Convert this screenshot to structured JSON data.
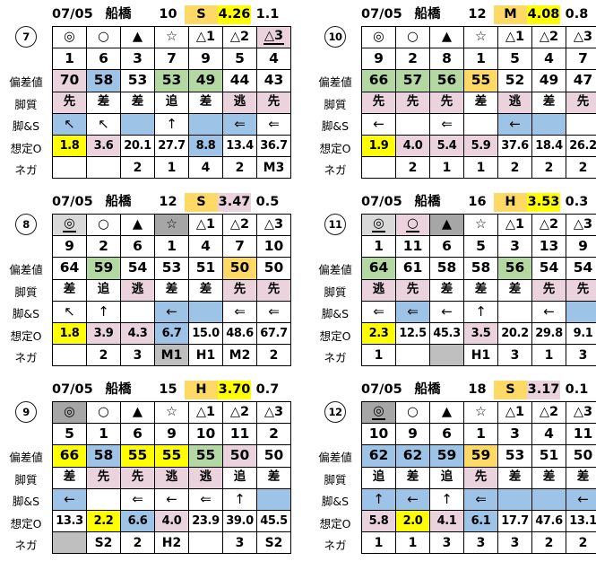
{
  "page": {
    "background": "#FFFFFF"
  },
  "colors": {
    "pink": "#EAD3DD",
    "blue": "#9DC3E6",
    "green": "#B3D8A2",
    "orange": "#FFD966",
    "yellow": "#FFFF00",
    "lgray": "#D9D9D9",
    "dgray": "#A6A6A6",
    "mgray": "#BFBFBF",
    "border": "#000000"
  },
  "row_labels": [
    {
      "key": "symbols",
      "label": ""
    },
    {
      "key": "numbers",
      "label": ""
    },
    {
      "key": "hensachi",
      "label": "偏差値"
    },
    {
      "key": "kyakushitsu",
      "label": "脚質"
    },
    {
      "key": "kyaku_s",
      "label": "脚&S"
    },
    {
      "key": "souteio",
      "label": "想定O"
    },
    {
      "key": "nega",
      "label": "ネガ"
    }
  ],
  "tables": [
    {
      "badge": "7",
      "header": {
        "date": "07/05",
        "venue": "船橋",
        "race": "10",
        "grade": "S",
        "grade_bg": "orange",
        "value": "4.26",
        "value_bg": "yellow",
        "margin": "1.1"
      },
      "rows": {
        "symbols": [
          {
            "t": "◎"
          },
          {
            "t": "○"
          },
          {
            "t": "▲"
          },
          {
            "t": "☆"
          },
          {
            "t": "△1"
          },
          {
            "t": "△2"
          },
          {
            "t": "△3",
            "bg": "pink",
            "u": true
          }
        ],
        "numbers": [
          {
            "t": "1"
          },
          {
            "t": "6"
          },
          {
            "t": "3"
          },
          {
            "t": "7"
          },
          {
            "t": "9"
          },
          {
            "t": "5"
          },
          {
            "t": "4"
          }
        ],
        "hensachi": [
          {
            "t": "70",
            "bg": "pink"
          },
          {
            "t": "58",
            "bg": "blue"
          },
          {
            "t": "53"
          },
          {
            "t": "53",
            "bg": "green"
          },
          {
            "t": "49",
            "bg": "green"
          },
          {
            "t": "44"
          },
          {
            "t": "43"
          }
        ],
        "kyakushitsu": [
          {
            "t": "先",
            "bg": "pink"
          },
          {
            "t": "差"
          },
          {
            "t": "差"
          },
          {
            "t": "追"
          },
          {
            "t": "差"
          },
          {
            "t": "逃",
            "bg": "pink"
          },
          {
            "t": "先",
            "bg": "pink"
          }
        ],
        "kyaku_s": [
          {
            "t": "↖",
            "bg": "blue"
          },
          {
            "t": "↖"
          },
          {
            "t": "",
            "bg": "blue"
          },
          {
            "t": "↑"
          },
          {
            "t": "",
            "bg": "blue"
          },
          {
            "t": "⇐",
            "bg": "blue"
          },
          {
            "t": "⇐"
          }
        ],
        "souteio": [
          {
            "t": "1.8",
            "bg": "yellow"
          },
          {
            "t": "3.6",
            "bg": "pink"
          },
          {
            "t": "20.1"
          },
          {
            "t": "27.7"
          },
          {
            "t": "8.8",
            "bg": "blue"
          },
          {
            "t": "13.4"
          },
          {
            "t": "36.7"
          }
        ],
        "nega": [
          {
            "t": ""
          },
          {
            "t": ""
          },
          {
            "t": "2"
          },
          {
            "t": "1"
          },
          {
            "t": "4"
          },
          {
            "t": "2"
          },
          {
            "t": "M3"
          }
        ]
      }
    },
    {
      "badge": "10",
      "header": {
        "date": "07/05",
        "venue": "船橋",
        "race": "12",
        "grade": "M",
        "grade_bg": "orange",
        "value": "4.08",
        "value_bg": "yellow",
        "margin": "0.8"
      },
      "rows": {
        "symbols": [
          {
            "t": "◎"
          },
          {
            "t": "○"
          },
          {
            "t": "▲"
          },
          {
            "t": "☆"
          },
          {
            "t": "△1"
          },
          {
            "t": "△2"
          },
          {
            "t": "△3"
          }
        ],
        "numbers": [
          {
            "t": "9"
          },
          {
            "t": "2"
          },
          {
            "t": "8"
          },
          {
            "t": "1"
          },
          {
            "t": "5"
          },
          {
            "t": "4"
          },
          {
            "t": "7"
          }
        ],
        "hensachi": [
          {
            "t": "66",
            "bg": "green"
          },
          {
            "t": "57",
            "bg": "green"
          },
          {
            "t": "56",
            "bg": "green"
          },
          {
            "t": "55",
            "bg": "orange"
          },
          {
            "t": "52"
          },
          {
            "t": "49"
          },
          {
            "t": "47"
          }
        ],
        "kyakushitsu": [
          {
            "t": "先",
            "bg": "pink"
          },
          {
            "t": "先",
            "bg": "pink"
          },
          {
            "t": "先",
            "bg": "pink"
          },
          {
            "t": "差"
          },
          {
            "t": "逃",
            "bg": "pink"
          },
          {
            "t": "差"
          },
          {
            "t": "先",
            "bg": "pink"
          }
        ],
        "kyaku_s": [
          {
            "t": "←"
          },
          {
            "t": ""
          },
          {
            "t": "⇐"
          },
          {
            "t": ""
          },
          {
            "t": "←",
            "bg": "blue"
          },
          {
            "t": "",
            "bg": "blue"
          },
          {
            "t": ""
          }
        ],
        "souteio": [
          {
            "t": "1.9",
            "bg": "yellow"
          },
          {
            "t": "4.0",
            "bg": "pink"
          },
          {
            "t": "5.4",
            "bg": "pink"
          },
          {
            "t": "5.9",
            "bg": "pink"
          },
          {
            "t": "37.6"
          },
          {
            "t": "18.4"
          },
          {
            "t": "26.2"
          }
        ],
        "nega": [
          {
            "t": ""
          },
          {
            "t": "2"
          },
          {
            "t": "1"
          },
          {
            "t": "1"
          },
          {
            "t": "2"
          },
          {
            "t": "2"
          },
          {
            "t": "2"
          }
        ]
      }
    },
    {
      "badge": "8",
      "header": {
        "date": "07/05",
        "venue": "船橋",
        "race": "12",
        "grade": "S",
        "grade_bg": "orange",
        "value": "3.47",
        "value_bg": "pink",
        "margin": "0.5"
      },
      "rows": {
        "symbols": [
          {
            "t": "◎",
            "bg": "lgray",
            "u": true
          },
          {
            "t": "○"
          },
          {
            "t": "▲"
          },
          {
            "t": "☆",
            "bg": "dgray"
          },
          {
            "t": "△1"
          },
          {
            "t": "△2"
          },
          {
            "t": "△3"
          }
        ],
        "numbers": [
          {
            "t": "9"
          },
          {
            "t": "2"
          },
          {
            "t": "6"
          },
          {
            "t": "1"
          },
          {
            "t": "4"
          },
          {
            "t": "7"
          },
          {
            "t": "10"
          }
        ],
        "hensachi": [
          {
            "t": "64"
          },
          {
            "t": "59",
            "bg": "green"
          },
          {
            "t": "54"
          },
          {
            "t": "53"
          },
          {
            "t": "51"
          },
          {
            "t": "50",
            "bg": "orange"
          },
          {
            "t": "50"
          }
        ],
        "kyakushitsu": [
          {
            "t": "差"
          },
          {
            "t": "追"
          },
          {
            "t": "逃",
            "bg": "pink"
          },
          {
            "t": "差"
          },
          {
            "t": "差"
          },
          {
            "t": "先",
            "bg": "pink"
          },
          {
            "t": "先",
            "bg": "pink"
          }
        ],
        "kyaku_s": [
          {
            "t": "↖"
          },
          {
            "t": "↑"
          },
          {
            "t": ""
          },
          {
            "t": "←",
            "bg": "blue"
          },
          {
            "t": "",
            "bg": "blue"
          },
          {
            "t": "⇐"
          },
          {
            "t": "⇐"
          }
        ],
        "souteio": [
          {
            "t": "1.8",
            "bg": "yellow"
          },
          {
            "t": "3.9",
            "bg": "pink"
          },
          {
            "t": "4.3",
            "bg": "pink"
          },
          {
            "t": "6.7",
            "bg": "blue"
          },
          {
            "t": "15.0"
          },
          {
            "t": "48.6"
          },
          {
            "t": "67.7"
          }
        ],
        "nega": [
          {
            "t": ""
          },
          {
            "t": "2"
          },
          {
            "t": "3"
          },
          {
            "t": "M1",
            "bg": "mgray"
          },
          {
            "t": "H1"
          },
          {
            "t": "M2"
          },
          {
            "t": "2"
          }
        ]
      }
    },
    {
      "badge": "11",
      "header": {
        "date": "07/05",
        "venue": "船橋",
        "race": "16",
        "grade": "H",
        "grade_bg": "orange",
        "value": "3.53",
        "value_bg": "yellow",
        "margin": "0.3"
      },
      "rows": {
        "symbols": [
          {
            "t": "◎",
            "bg": "lgray",
            "u": true
          },
          {
            "t": "○",
            "bg": "pink",
            "u": true
          },
          {
            "t": "▲",
            "bg": "dgray"
          },
          {
            "t": "☆"
          },
          {
            "t": "△1"
          },
          {
            "t": "△2"
          },
          {
            "t": "△3"
          }
        ],
        "numbers": [
          {
            "t": "1"
          },
          {
            "t": "11"
          },
          {
            "t": "6"
          },
          {
            "t": "5"
          },
          {
            "t": "3"
          },
          {
            "t": "13"
          },
          {
            "t": "9"
          }
        ],
        "hensachi": [
          {
            "t": "64",
            "bg": "green"
          },
          {
            "t": "61"
          },
          {
            "t": "58"
          },
          {
            "t": "58"
          },
          {
            "t": "56",
            "bg": "green"
          },
          {
            "t": "54"
          },
          {
            "t": "54"
          }
        ],
        "kyakushitsu": [
          {
            "t": "逃",
            "bg": "pink"
          },
          {
            "t": "先",
            "bg": "pink"
          },
          {
            "t": "差"
          },
          {
            "t": "差"
          },
          {
            "t": "差"
          },
          {
            "t": "先",
            "bg": "pink"
          },
          {
            "t": "先",
            "bg": "pink"
          }
        ],
        "kyaku_s": [
          {
            "t": "⇐"
          },
          {
            "t": "⇐",
            "bg": "blue"
          },
          {
            "t": "←"
          },
          {
            "t": "↑"
          },
          {
            "t": ""
          },
          {
            "t": "←"
          },
          {
            "t": "",
            "bg": "blue"
          }
        ],
        "souteio": [
          {
            "t": "2.3",
            "bg": "yellow"
          },
          {
            "t": "12.5"
          },
          {
            "t": "45.3"
          },
          {
            "t": "3.5",
            "bg": "pink"
          },
          {
            "t": "20.2"
          },
          {
            "t": "29.8"
          },
          {
            "t": "9.1"
          }
        ],
        "nega": [
          {
            "t": "1"
          },
          {
            "t": ""
          },
          {
            "t": "",
            "bg": "mgray"
          },
          {
            "t": "H1"
          },
          {
            "t": "3"
          },
          {
            "t": "1"
          },
          {
            "t": "3"
          }
        ]
      }
    },
    {
      "badge": "9",
      "header": {
        "date": "07/05",
        "venue": "船橋",
        "race": "15",
        "grade": "H",
        "grade_bg": "orange",
        "value": "3.70",
        "value_bg": "yellow",
        "margin": "0.7"
      },
      "rows": {
        "symbols": [
          {
            "t": "◎",
            "bg": "dgray"
          },
          {
            "t": "○"
          },
          {
            "t": "▲"
          },
          {
            "t": "☆"
          },
          {
            "t": "△1"
          },
          {
            "t": "△2"
          },
          {
            "t": "△3"
          }
        ],
        "numbers": [
          {
            "t": "5"
          },
          {
            "t": "1"
          },
          {
            "t": "6"
          },
          {
            "t": "9"
          },
          {
            "t": "10"
          },
          {
            "t": "11"
          },
          {
            "t": "2"
          }
        ],
        "hensachi": [
          {
            "t": "66",
            "bg": "yellow"
          },
          {
            "t": "58",
            "bg": "blue"
          },
          {
            "t": "55",
            "bg": "yellow"
          },
          {
            "t": "55",
            "bg": "yellow"
          },
          {
            "t": "55",
            "bg": "green"
          },
          {
            "t": "50",
            "bg": "pink"
          },
          {
            "t": "50"
          }
        ],
        "kyakushitsu": [
          {
            "t": "差"
          },
          {
            "t": "先",
            "bg": "pink"
          },
          {
            "t": "先",
            "bg": "pink"
          },
          {
            "t": "逃",
            "bg": "pink"
          },
          {
            "t": "逃",
            "bg": "pink"
          },
          {
            "t": "追"
          },
          {
            "t": "差"
          }
        ],
        "kyaku_s": [
          {
            "t": "←",
            "bg": "blue"
          },
          {
            "t": ""
          },
          {
            "t": "⇐"
          },
          {
            "t": "←"
          },
          {
            "t": "⇐"
          },
          {
            "t": "↑"
          },
          {
            "t": "",
            "bg": "blue"
          }
        ],
        "souteio": [
          {
            "t": "13.3"
          },
          {
            "t": "2.2",
            "bg": "yellow"
          },
          {
            "t": "6.6",
            "bg": "blue"
          },
          {
            "t": "4.0",
            "bg": "pink"
          },
          {
            "t": "23.9"
          },
          {
            "t": "39.0"
          },
          {
            "t": "45.5"
          }
        ],
        "nega": [
          {
            "t": "",
            "bg": "mgray"
          },
          {
            "t": "S2"
          },
          {
            "t": "2"
          },
          {
            "t": "H2"
          },
          {
            "t": ""
          },
          {
            "t": "3"
          },
          {
            "t": "S2"
          }
        ]
      }
    },
    {
      "badge": "12",
      "header": {
        "date": "07/05",
        "venue": "船橋",
        "race": "18",
        "grade": "S",
        "grade_bg": "orange",
        "value": "3.17",
        "value_bg": "pink",
        "margin": "0.1"
      },
      "rows": {
        "symbols": [
          {
            "t": "◎",
            "bg": "dgray",
            "u": true
          },
          {
            "t": "○"
          },
          {
            "t": "▲"
          },
          {
            "t": "☆"
          },
          {
            "t": "△1"
          },
          {
            "t": "△2"
          },
          {
            "t": "△3"
          }
        ],
        "numbers": [
          {
            "t": "10"
          },
          {
            "t": "9"
          },
          {
            "t": "6"
          },
          {
            "t": "1"
          },
          {
            "t": "3"
          },
          {
            "t": "4"
          },
          {
            "t": "11"
          }
        ],
        "hensachi": [
          {
            "t": "62",
            "bg": "blue"
          },
          {
            "t": "62",
            "bg": "blue"
          },
          {
            "t": "59",
            "bg": "blue"
          },
          {
            "t": "59",
            "bg": "orange"
          },
          {
            "t": "53"
          },
          {
            "t": "51"
          },
          {
            "t": "50"
          }
        ],
        "kyakushitsu": [
          {
            "t": "追"
          },
          {
            "t": "差"
          },
          {
            "t": "追"
          },
          {
            "t": "先",
            "bg": "pink"
          },
          {
            "t": "差"
          },
          {
            "t": "差"
          },
          {
            "t": "差"
          }
        ],
        "kyaku_s": [
          {
            "t": "↑",
            "bg": "blue"
          },
          {
            "t": "←",
            "bg": "blue"
          },
          {
            "t": "↑"
          },
          {
            "t": "⇐",
            "bg": "blue"
          },
          {
            "t": "",
            "bg": "blue"
          },
          {
            "t": "",
            "bg": "blue"
          },
          {
            "t": "←",
            "bg": "blue"
          }
        ],
        "souteio": [
          {
            "t": "5.8",
            "bg": "pink"
          },
          {
            "t": "2.0",
            "bg": "yellow"
          },
          {
            "t": "4.1",
            "bg": "pink"
          },
          {
            "t": "6.1",
            "bg": "blue"
          },
          {
            "t": "17.7"
          },
          {
            "t": "47.6"
          },
          {
            "t": "13.1"
          }
        ],
        "nega": [
          {
            "t": "1"
          },
          {
            "t": "1"
          },
          {
            "t": "3"
          },
          {
            "t": "3"
          },
          {
            "t": "3"
          },
          {
            "t": "2"
          },
          {
            "t": "2"
          }
        ]
      }
    }
  ]
}
